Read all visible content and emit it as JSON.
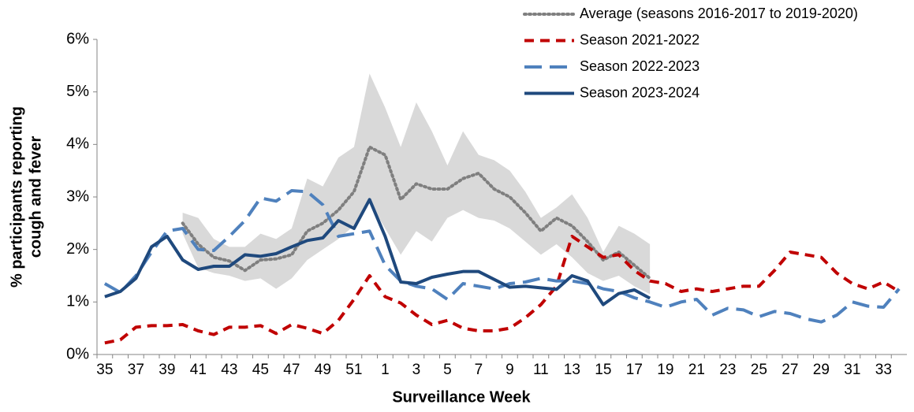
{
  "chart_data": {
    "type": "line",
    "ylabel": [
      "% participants reporting",
      "cough and fever"
    ],
    "xlabel": "Surveillance Week",
    "categories": [
      35,
      null,
      37,
      null,
      39,
      null,
      41,
      null,
      43,
      null,
      45,
      null,
      47,
      null,
      49,
      null,
      51,
      null,
      1,
      null,
      3,
      null,
      5,
      null,
      7,
      null,
      9,
      null,
      11,
      null,
      13,
      null,
      15,
      null,
      17,
      null,
      19,
      null,
      21,
      null,
      23,
      null,
      25,
      null,
      27,
      null,
      29,
      null,
      31,
      null,
      33,
      null
    ],
    "ylim": [
      0,
      6
    ],
    "yticks": [
      {
        "value": 0,
        "label": "0%"
      },
      {
        "value": 1,
        "label": "1%"
      },
      {
        "value": 2,
        "label": "2%"
      },
      {
        "value": 3,
        "label": "3%"
      },
      {
        "value": 4,
        "label": "4%"
      },
      {
        "value": 5,
        "label": "5%"
      },
      {
        "value": 6,
        "label": "6%"
      }
    ],
    "band": {
      "color": "#d9d9d9",
      "lower": [
        null,
        null,
        null,
        null,
        null,
        2.3,
        1.65,
        1.55,
        1.5,
        1.4,
        1.45,
        1.25,
        1.45,
        1.8,
        2.0,
        2.2,
        2.45,
        2.9,
        2.4,
        1.9,
        2.35,
        2.15,
        2.6,
        2.75,
        2.6,
        2.55,
        2.4,
        2.15,
        1.9,
        2.1,
        1.85,
        1.55,
        1.4,
        1.5,
        1.3,
        1.15,
        null,
        null,
        null,
        null,
        null,
        null,
        null,
        null,
        null,
        null,
        null,
        null,
        null,
        null,
        null,
        null
      ],
      "upper": [
        null,
        null,
        null,
        null,
        null,
        2.7,
        2.6,
        2.2,
        2.05,
        2.05,
        2.3,
        2.2,
        2.4,
        3.35,
        3.2,
        3.75,
        3.95,
        5.35,
        4.7,
        3.95,
        4.8,
        4.25,
        3.6,
        4.25,
        3.8,
        3.7,
        3.5,
        3.1,
        2.6,
        2.8,
        3.05,
        2.6,
        1.95,
        2.45,
        2.3,
        2.1,
        null,
        null,
        null,
        null,
        null,
        null,
        null,
        null,
        null,
        null,
        null,
        null,
        null,
        null,
        null,
        null
      ]
    },
    "series": [
      {
        "name": "Average (seasons 2016-2017 to 2019-2020)",
        "color": "#7f7f7f",
        "style": "dotted",
        "values": [
          null,
          null,
          null,
          null,
          null,
          2.5,
          2.1,
          1.85,
          1.78,
          1.6,
          1.8,
          1.82,
          1.9,
          2.35,
          2.5,
          2.75,
          3.1,
          3.95,
          3.8,
          2.95,
          3.25,
          3.15,
          3.15,
          3.35,
          3.45,
          3.15,
          3.0,
          2.7,
          2.35,
          2.6,
          2.45,
          2.15,
          1.8,
          1.95,
          1.7,
          1.45,
          null,
          null,
          null,
          null,
          null,
          null,
          null,
          null,
          null,
          null,
          null,
          null,
          null,
          null,
          null,
          null
        ]
      },
      {
        "name": "Season 2021-2022",
        "color": "#c00000",
        "style": "dashed",
        "values": [
          0.22,
          0.28,
          0.52,
          0.55,
          0.55,
          0.57,
          0.45,
          0.38,
          0.52,
          0.52,
          0.55,
          0.4,
          0.57,
          0.5,
          0.4,
          0.65,
          1.05,
          1.5,
          1.1,
          0.98,
          0.75,
          0.57,
          0.65,
          0.5,
          0.45,
          0.45,
          0.5,
          0.7,
          0.95,
          1.3,
          2.25,
          2.05,
          1.85,
          1.9,
          1.6,
          1.4,
          1.35,
          1.2,
          1.25,
          1.2,
          1.25,
          1.3,
          1.3,
          1.6,
          1.95,
          1.9,
          1.85,
          1.55,
          1.35,
          1.25,
          1.38,
          1.2
        ]
      },
      {
        "name": "Season 2022-2023",
        "color": "#4f81bd",
        "style": "longdash",
        "values": [
          1.35,
          1.18,
          1.5,
          1.95,
          2.35,
          2.4,
          2.0,
          1.98,
          2.25,
          2.55,
          2.98,
          2.92,
          3.12,
          3.1,
          2.85,
          2.25,
          2.3,
          2.35,
          1.7,
          1.4,
          1.3,
          1.25,
          1.05,
          1.35,
          1.3,
          1.25,
          1.35,
          1.38,
          1.45,
          1.4,
          1.4,
          1.35,
          1.25,
          1.2,
          1.08,
          1.0,
          0.9,
          1.0,
          1.05,
          0.75,
          0.88,
          0.85,
          0.72,
          0.82,
          0.78,
          0.68,
          0.62,
          0.75,
          1.0,
          0.92,
          0.9,
          1.25
        ]
      },
      {
        "name": "Season 2023-2024",
        "color": "#1f497d",
        "style": "solid",
        "values": [
          1.1,
          1.2,
          1.45,
          2.05,
          2.25,
          1.8,
          1.62,
          1.68,
          1.68,
          1.9,
          1.87,
          1.92,
          2.05,
          2.17,
          2.22,
          2.55,
          2.4,
          2.95,
          2.25,
          1.38,
          1.35,
          1.47,
          1.53,
          1.58,
          1.58,
          1.43,
          1.28,
          1.3,
          1.27,
          1.24,
          1.5,
          1.4,
          0.95,
          1.16,
          1.23,
          1.07,
          null,
          null,
          null,
          null,
          null,
          null,
          null,
          null,
          null,
          null,
          null,
          null,
          null,
          null,
          null,
          null
        ]
      }
    ]
  }
}
